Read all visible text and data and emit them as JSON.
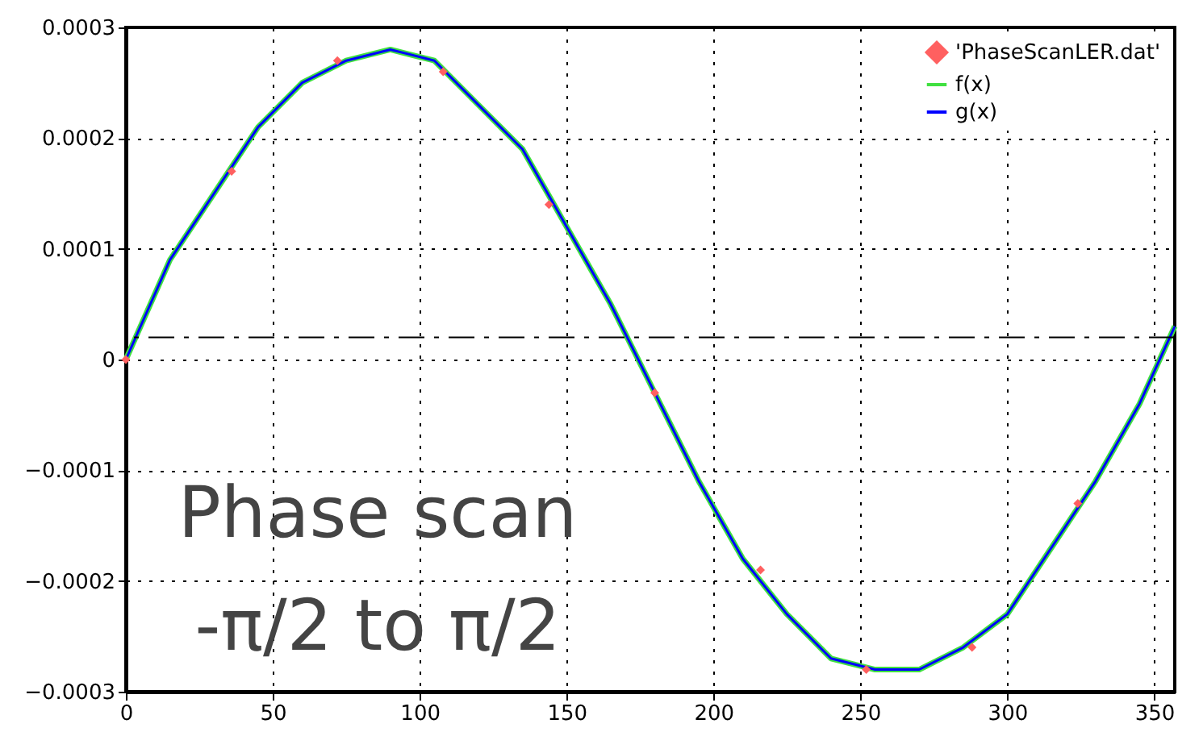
{
  "chart_data": {
    "type": "line",
    "annotations": [
      "Phase scan",
      "-π/2 to π/2"
    ],
    "xlim": [
      0,
      357
    ],
    "xticks": [
      0,
      50,
      100,
      150,
      200,
      250,
      300,
      350
    ],
    "ylim": [
      -0.0003,
      0.0003
    ],
    "yticks": [
      -0.0003,
      -0.0002,
      -0.0001,
      0,
      0.0001,
      0.0002,
      0.0003
    ],
    "grid": true,
    "legend": "top right",
    "ref_lines": [
      {
        "axis": "y",
        "value": 2e-05,
        "color": "#000000",
        "line_style": "dashed"
      }
    ],
    "series": [
      {
        "name": "'PhaseScanLER.dat'",
        "type": "scatter",
        "marker": "diamond",
        "color": "#ff6060",
        "x": [
          0,
          36,
          72,
          108,
          144,
          180,
          216,
          252,
          288,
          324
        ],
        "values": [
          0,
          0.00017,
          0.00027,
          0.00026,
          0.00014,
          -3e-05,
          -0.00019,
          -0.00028,
          -0.00026,
          -0.00013
        ]
      },
      {
        "name": "f(x)",
        "color": "#40e040",
        "x": [
          0,
          15,
          30,
          45,
          60,
          75,
          90,
          105,
          120,
          135,
          150,
          165,
          180,
          195,
          210,
          225,
          240,
          255,
          270,
          285,
          300,
          315,
          330,
          345,
          357
        ],
        "values": [
          0,
          9e-05,
          0.00015,
          0.00021,
          0.00025,
          0.00027,
          0.00028,
          0.00027,
          0.00023,
          0.00019,
          0.00012,
          5e-05,
          -3e-05,
          -0.00011,
          -0.00018,
          -0.00023,
          -0.00027,
          -0.00028,
          -0.00028,
          -0.00026,
          -0.00023,
          -0.00017,
          -0.00011,
          -4e-05,
          3e-05
        ]
      },
      {
        "name": "g(x)",
        "color": "#0000ff",
        "x": [
          0,
          15,
          30,
          45,
          60,
          75,
          90,
          105,
          120,
          135,
          150,
          165,
          180,
          195,
          210,
          225,
          240,
          255,
          270,
          285,
          300,
          315,
          330,
          345,
          357
        ],
        "values": [
          0,
          9e-05,
          0.00015,
          0.00021,
          0.00025,
          0.00027,
          0.00028,
          0.00027,
          0.00023,
          0.00019,
          0.00012,
          5e-05,
          -3e-05,
          -0.00011,
          -0.00018,
          -0.00023,
          -0.00027,
          -0.00028,
          -0.00028,
          -0.00026,
          -0.00023,
          -0.00017,
          -0.00011,
          -4e-05,
          3e-05
        ]
      }
    ]
  }
}
